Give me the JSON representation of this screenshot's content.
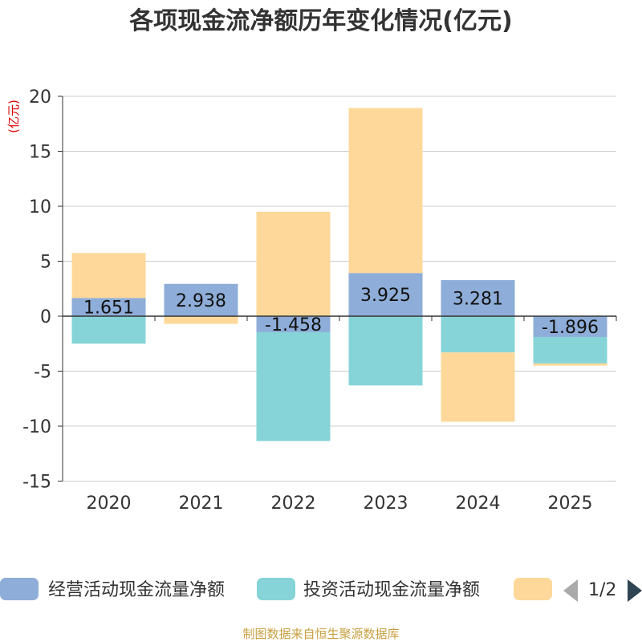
{
  "chart_data": {
    "type": "bar",
    "stacked": true,
    "title": "各项现金流净额历年变化情况(亿元)",
    "ylabel": "(亿元)",
    "xlabel": "",
    "ylim": [
      -15,
      20
    ],
    "yticks": [
      20,
      15,
      10,
      5,
      0,
      -5,
      -10,
      -15
    ],
    "categories": [
      "2020",
      "2021",
      "2022",
      "2023",
      "2024",
      "2025"
    ],
    "series": [
      {
        "name": "经营活动现金流量净额",
        "color": "#8eadd8",
        "values": [
          1.651,
          2.938,
          -1.458,
          3.925,
          3.281,
          -1.896
        ]
      },
      {
        "name": "投资活动现金流量净额",
        "color": "#86d4d8",
        "values": [
          -2.5,
          0,
          -9.9,
          -6.3,
          -3.3,
          -2.4
        ]
      },
      {
        "name": "",
        "color": "#fdd89a",
        "values": [
          4.1,
          -0.7,
          9.5,
          15.0,
          -6.3,
          -0.2
        ]
      }
    ],
    "data_labels": [
      "1.651",
      "2.938",
      "-1.458",
      "3.925",
      "3.281",
      "-1.896"
    ],
    "legend": {
      "placement": "bottom",
      "page": "1/2"
    },
    "source": "制图数据来自恒生聚源数据库"
  }
}
